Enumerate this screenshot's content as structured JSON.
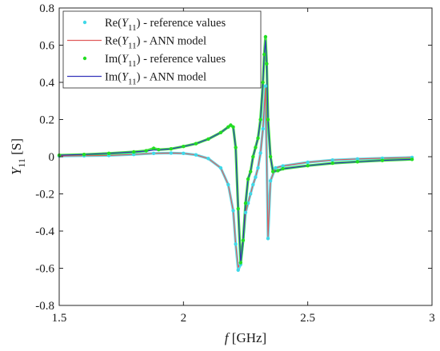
{
  "chart_data": {
    "type": "line",
    "xlabel": {
      "italic": "f",
      "rest": " [GHz]"
    },
    "ylabel": {
      "base": "Y",
      "sub": "11",
      "rest": " [S]"
    },
    "xlim": [
      1.5,
      3.0
    ],
    "ylim": [
      -0.8,
      0.8
    ],
    "x_ticks": [
      1.5,
      2,
      2.5,
      3
    ],
    "x_tick_labels": [
      "1.5",
      "2",
      "2.5",
      "3"
    ],
    "y_ticks": [
      -0.8,
      -0.6,
      -0.4,
      -0.2,
      0,
      0.2,
      0.4,
      0.6,
      0.8
    ],
    "y_tick_labels": [
      "-0.8",
      "-0.6",
      "-0.4",
      "-0.2",
      "0",
      "0.2",
      "0.4",
      "0.6",
      "0.8"
    ],
    "grid": false,
    "legend_position": "top-left",
    "series": [
      {
        "name_parts": [
          "Re(",
          "Y",
          "11",
          ") - reference values"
        ],
        "style": "points",
        "color": "#3fd8e8",
        "x": [
          1.5,
          1.6,
          1.7,
          1.8,
          1.88,
          1.95,
          2.0,
          2.05,
          2.1,
          2.15,
          2.18,
          2.2,
          2.21,
          2.22,
          2.23,
          2.24,
          2.25,
          2.26,
          2.27,
          2.28,
          2.29,
          2.3,
          2.31,
          2.32,
          2.33,
          2.34,
          2.35,
          2.37,
          2.4,
          2.5,
          2.6,
          2.7,
          2.8,
          2.92
        ],
        "y": [
          0.004,
          0.005,
          0.007,
          0.012,
          0.018,
          0.02,
          0.018,
          0.01,
          -0.01,
          -0.06,
          -0.15,
          -0.29,
          -0.47,
          -0.61,
          -0.58,
          -0.45,
          -0.3,
          -0.25,
          -0.2,
          -0.15,
          -0.11,
          -0.06,
          0.02,
          0.15,
          0.38,
          -0.44,
          -0.13,
          -0.06,
          -0.05,
          -0.03,
          -0.018,
          -0.012,
          -0.008,
          -0.004
        ]
      },
      {
        "name_parts": [
          "Re(",
          "Y",
          "11",
          ") - ANN model"
        ],
        "style": "line",
        "color": "#e05a5a",
        "x": [
          1.5,
          1.6,
          1.7,
          1.8,
          1.88,
          1.95,
          2.0,
          2.05,
          2.1,
          2.15,
          2.18,
          2.2,
          2.21,
          2.22,
          2.23,
          2.24,
          2.25,
          2.26,
          2.27,
          2.28,
          2.29,
          2.3,
          2.31,
          2.32,
          2.33,
          2.34,
          2.35,
          2.37,
          2.4,
          2.5,
          2.6,
          2.7,
          2.8,
          2.92
        ],
        "y": [
          0.004,
          0.005,
          0.007,
          0.012,
          0.018,
          0.02,
          0.018,
          0.01,
          -0.01,
          -0.06,
          -0.15,
          -0.29,
          -0.47,
          -0.595,
          -0.57,
          -0.44,
          -0.3,
          -0.25,
          -0.2,
          -0.15,
          -0.11,
          -0.06,
          0.02,
          0.15,
          0.37,
          -0.43,
          -0.13,
          -0.06,
          -0.05,
          -0.03,
          -0.018,
          -0.012,
          -0.008,
          -0.004
        ]
      },
      {
        "name_parts": [
          "Im(",
          "Y",
          "11",
          ") - reference values"
        ],
        "style": "points",
        "color": "#22dd22",
        "x": [
          1.5,
          1.6,
          1.7,
          1.8,
          1.85,
          1.88,
          1.9,
          1.95,
          2.0,
          2.05,
          2.1,
          2.15,
          2.18,
          2.19,
          2.2,
          2.21,
          2.22,
          2.23,
          2.24,
          2.25,
          2.26,
          2.27,
          2.28,
          2.29,
          2.3,
          2.31,
          2.32,
          2.325,
          2.33,
          2.335,
          2.34,
          2.35,
          2.36,
          2.38,
          2.4,
          2.5,
          2.6,
          2.7,
          2.8,
          2.92
        ],
        "y": [
          0.008,
          0.012,
          0.018,
          0.026,
          0.032,
          0.045,
          0.038,
          0.042,
          0.055,
          0.07,
          0.095,
          0.13,
          0.16,
          0.17,
          0.16,
          0.05,
          -0.28,
          -0.57,
          -0.45,
          -0.25,
          -0.12,
          -0.08,
          0.0,
          0.05,
          0.1,
          0.2,
          0.4,
          0.55,
          0.645,
          0.5,
          0.2,
          0.0,
          -0.08,
          -0.075,
          -0.065,
          -0.048,
          -0.035,
          -0.027,
          -0.02,
          -0.014
        ]
      },
      {
        "name_parts": [
          "Im(",
          "Y",
          "11",
          ") - ANN model"
        ],
        "style": "line",
        "color": "#3333bb",
        "x": [
          1.5,
          1.6,
          1.7,
          1.8,
          1.85,
          1.88,
          1.9,
          1.95,
          2.0,
          2.05,
          2.1,
          2.15,
          2.18,
          2.19,
          2.2,
          2.21,
          2.22,
          2.23,
          2.24,
          2.25,
          2.26,
          2.27,
          2.28,
          2.29,
          2.3,
          2.31,
          2.32,
          2.325,
          2.33,
          2.335,
          2.34,
          2.35,
          2.36,
          2.38,
          2.4,
          2.5,
          2.6,
          2.7,
          2.8,
          2.92
        ],
        "y": [
          0.008,
          0.012,
          0.018,
          0.026,
          0.03,
          0.036,
          0.036,
          0.042,
          0.055,
          0.07,
          0.095,
          0.13,
          0.16,
          0.17,
          0.16,
          0.05,
          -0.28,
          -0.565,
          -0.45,
          -0.25,
          -0.12,
          -0.08,
          0.0,
          0.05,
          0.1,
          0.2,
          0.4,
          0.55,
          0.625,
          0.5,
          0.2,
          0.0,
          -0.08,
          -0.075,
          -0.065,
          -0.048,
          -0.035,
          -0.027,
          -0.02,
          -0.014
        ]
      }
    ]
  }
}
